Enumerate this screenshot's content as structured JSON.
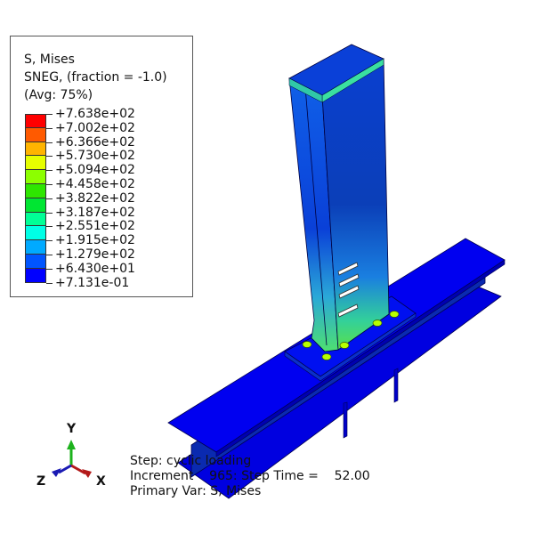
{
  "legend": {
    "title_lines": [
      "S, Mises",
      "SNEG, (fraction = -1.0)",
      "(Avg: 75%)"
    ],
    "levels": [
      "+7.638e+02",
      "+7.002e+02",
      "+6.366e+02",
      "+5.730e+02",
      "+5.094e+02",
      "+4.458e+02",
      "+3.822e+02",
      "+3.187e+02",
      "+2.551e+02",
      "+1.915e+02",
      "+1.279e+02",
      "+6.430e+01",
      "+7.131e-01"
    ],
    "colors": [
      "#ff0000",
      "#ff5a00",
      "#ffb400",
      "#e6ff00",
      "#8cff00",
      "#2ee600",
      "#00e632",
      "#00ff96",
      "#00ffe6",
      "#00aaff",
      "#0055ff",
      "#0000ff"
    ]
  },
  "triad": {
    "y": "Y",
    "z": "Z",
    "x": "X",
    "colors": {
      "y": "#1db21d",
      "z": "#1a1ab3",
      "x": "#b31a1a"
    }
  },
  "info": {
    "step": "Step: cyclic loading",
    "increment": "Increment    965: Step Time =    52.00",
    "primary_var": "Primary Var: S, Mises"
  }
}
